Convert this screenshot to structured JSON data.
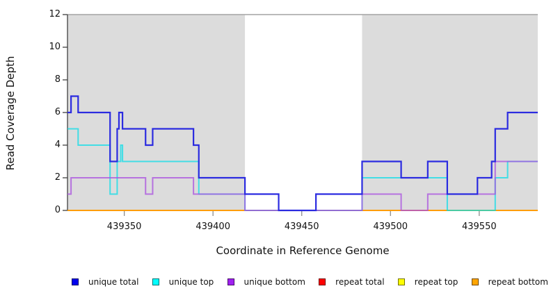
{
  "chart_data": {
    "type": "line",
    "subtype": "step-coverage-plot",
    "title": "",
    "xlabel": "Coordinate in Reference Genome",
    "ylabel": "Read Coverage Depth",
    "xlim": [
      439318,
      439583
    ],
    "ylim": [
      0,
      12
    ],
    "x_ticks": [
      439350,
      439400,
      439450,
      439500,
      439550
    ],
    "y_ticks": [
      0,
      2,
      4,
      6,
      8,
      10,
      12
    ],
    "grid": false,
    "legend_position": "bottom",
    "plot_background": "#ffffff",
    "shaded_band_color": "#dcdcdc",
    "top_border_color": "#a3a3a3",
    "y_axis_color": "#404040",
    "x_tick_color": "#8c8c8c",
    "shaded_regions": [
      {
        "from": 439318,
        "to": 439418
      },
      {
        "from": 439484,
        "to": 439583
      }
    ],
    "series": [
      {
        "name": "unique total",
        "color": "#0000ee",
        "stroke": "#2b2be0",
        "opacity": 1,
        "width": 2.2,
        "z": 5,
        "steps": [
          [
            439318,
            6
          ],
          [
            439320,
            7
          ],
          [
            439324,
            6
          ],
          [
            439342,
            3
          ],
          [
            439346,
            5
          ],
          [
            439347,
            6
          ],
          [
            439349,
            5
          ],
          [
            439362,
            4
          ],
          [
            439366,
            5
          ],
          [
            439389,
            4
          ],
          [
            439392,
            2
          ],
          [
            439418,
            1
          ],
          [
            439437,
            0
          ],
          [
            439458,
            1
          ],
          [
            439484,
            3
          ],
          [
            439506,
            2
          ],
          [
            439521,
            3
          ],
          [
            439532,
            1
          ],
          [
            439549,
            2
          ],
          [
            439557,
            3
          ],
          [
            439559,
            5
          ],
          [
            439566,
            6
          ]
        ]
      },
      {
        "name": "unique top",
        "color": "#00ffff",
        "stroke": "#00dde8",
        "opacity": 0.7,
        "width": 2,
        "z": 3,
        "steps": [
          [
            439318,
            5
          ],
          [
            439324,
            4
          ],
          [
            439342,
            1
          ],
          [
            439346,
            3
          ],
          [
            439348,
            4
          ],
          [
            439349,
            3
          ],
          [
            439392,
            1
          ],
          [
            439418,
            0
          ],
          [
            439484,
            2
          ],
          [
            439532,
            0
          ],
          [
            439559,
            2
          ],
          [
            439566,
            3
          ]
        ]
      },
      {
        "name": "unique bottom",
        "color": "#a020f0",
        "stroke": "#a94fe0",
        "opacity": 0.75,
        "width": 2,
        "z": 4,
        "steps": [
          [
            439318,
            1
          ],
          [
            439320,
            2
          ],
          [
            439362,
            1
          ],
          [
            439366,
            2
          ],
          [
            439389,
            1
          ],
          [
            439418,
            0
          ],
          [
            439484,
            1
          ],
          [
            439506,
            0
          ],
          [
            439521,
            1
          ],
          [
            439559,
            3
          ]
        ]
      },
      {
        "name": "repeat total",
        "color": "#ff0000",
        "stroke": "#e00000",
        "opacity": 1,
        "width": 2,
        "z": 0,
        "steps": [
          [
            439318,
            0
          ]
        ]
      },
      {
        "name": "repeat top",
        "color": "#ffff00",
        "stroke": "#f0f000",
        "opacity": 1,
        "width": 2,
        "z": 1,
        "steps": [
          [
            439318,
            0
          ]
        ]
      },
      {
        "name": "repeat bottom",
        "color": "#ffa500",
        "stroke": "#ff9d00",
        "opacity": 1,
        "width": 2,
        "z": 2,
        "steps": [
          [
            439318,
            0
          ]
        ]
      }
    ]
  }
}
